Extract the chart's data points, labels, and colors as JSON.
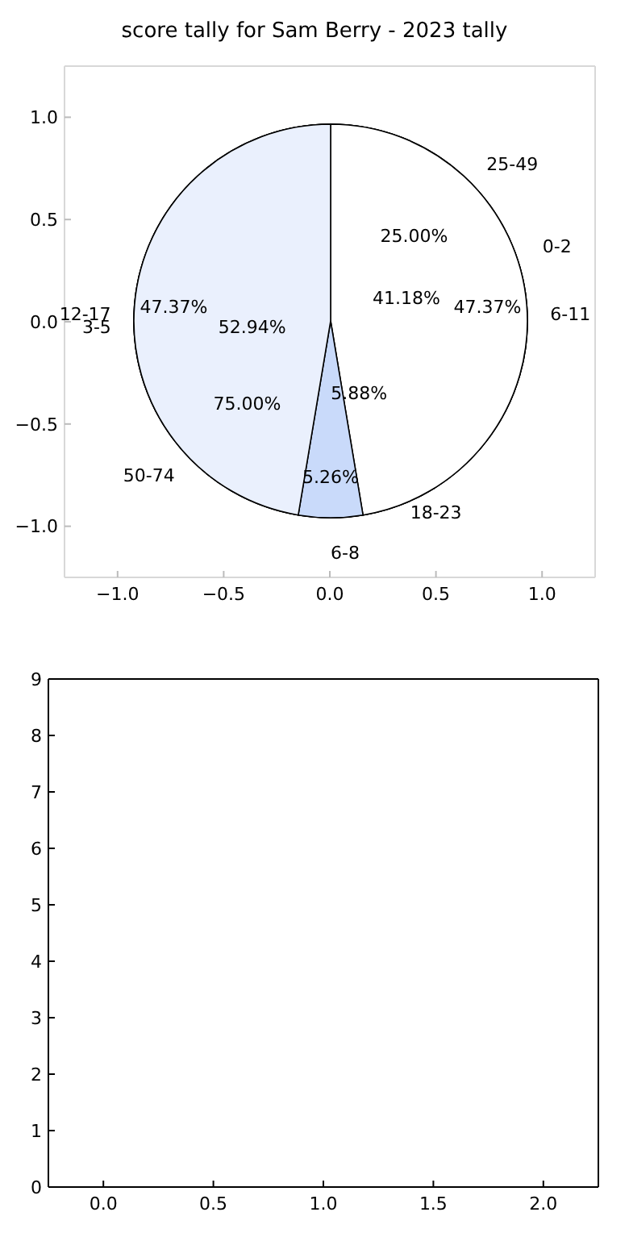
{
  "chart_data": [
    {
      "type": "pie",
      "title": "score tally for Sam Berry - 2023 tally",
      "categories": [
        "25-49",
        "50-74"
      ],
      "values": [
        25,
        75
      ],
      "value_labels": [
        "25.00%",
        "75.00%"
      ],
      "colors": [
        "#ffffff",
        "#eaf0fd"
      ],
      "legend": false
    },
    {
      "type": "pie",
      "categories": [
        "0-2",
        "18-23",
        "3-5"
      ],
      "values": [
        41.18,
        5.88,
        52.94
      ],
      "value_labels": [
        "41.18%",
        "5.88%",
        "52.94%"
      ],
      "colors": [
        "#ffffff",
        "#c9dafa",
        "#eaf0fd"
      ],
      "legend": false
    },
    {
      "type": "pie",
      "categories": [
        "6-11",
        "6-8",
        "12-17"
      ],
      "values": [
        47.37,
        5.26,
        47.37
      ],
      "value_labels": [
        "47.37%",
        "5.26%",
        "47.37%"
      ],
      "colors": [
        "#ffffff",
        "#c9dafa",
        "#eaf0fd"
      ],
      "legend": false
    },
    {
      "type": "scatter",
      "xlim": [
        -1.25,
        1.25
      ],
      "ylim": [
        -1.25,
        1.25
      ],
      "xticks": [
        {
          "value": -1,
          "label": "−1.0"
        },
        {
          "value": -0.5,
          "label": "−0.5"
        },
        {
          "value": 0,
          "label": "0.0"
        },
        {
          "value": 0.5,
          "label": "0.5"
        },
        {
          "value": 1,
          "label": "1.0"
        }
      ],
      "yticks": [
        {
          "value": -1,
          "label": "−1.0"
        },
        {
          "value": -0.5,
          "label": "−0.5"
        },
        {
          "value": 0,
          "label": "0.0"
        },
        {
          "value": 0.5,
          "label": "0.5"
        },
        {
          "value": 1,
          "label": "1.0"
        }
      ],
      "legend": false
    },
    {
      "type": "scatter",
      "xlim": [
        -0.25,
        2.25
      ],
      "ylim": [
        0,
        9
      ],
      "xticks": [
        {
          "value": 0,
          "label": "0.0"
        },
        {
          "value": 0.5,
          "label": "0.5"
        },
        {
          "value": 1,
          "label": "1.0"
        },
        {
          "value": 1.5,
          "label": "1.5"
        },
        {
          "value": 2,
          "label": "2.0"
        }
      ],
      "yticks": [
        0,
        1,
        2,
        3,
        4,
        5,
        6,
        7,
        8,
        9
      ],
      "legend": false
    }
  ]
}
